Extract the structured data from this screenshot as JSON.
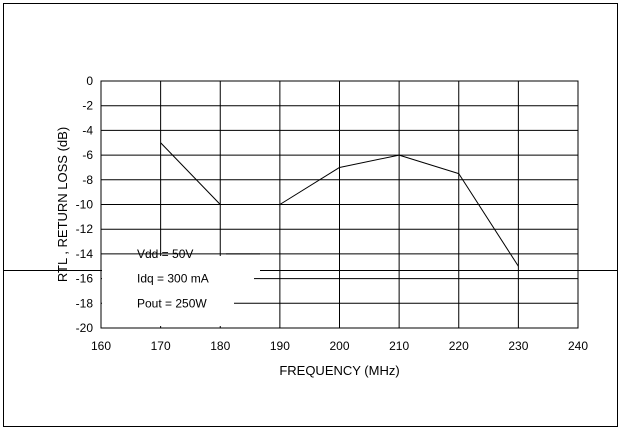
{
  "chart_data": {
    "type": "line",
    "title": "",
    "xlabel": "FREQUENCY (MHz)",
    "ylabel": "RTL , RETURN LOSS (dB)",
    "xlim": [
      160,
      240
    ],
    "ylim": [
      -20,
      0
    ],
    "xticks": [
      160,
      170,
      180,
      190,
      200,
      210,
      220,
      230,
      240
    ],
    "yticks": [
      0,
      -2,
      -4,
      -6,
      -8,
      -10,
      -12,
      -14,
      -16,
      -18,
      -20
    ],
    "grid": true,
    "series": [
      {
        "name": "",
        "x": [
          170,
          180,
          190,
          200,
          210,
          220,
          230
        ],
        "y": [
          -5,
          -10,
          -10,
          -7,
          -6,
          -7.5,
          -15
        ],
        "segments": [
          [
            0,
            1
          ],
          [
            2,
            3
          ],
          [
            3,
            4
          ],
          [
            4,
            5
          ],
          [
            5,
            6
          ]
        ]
      }
    ],
    "annotations": [
      "Vdd = 50V",
      "Idq = 300 mA",
      "Pout = 250W"
    ],
    "colors": {
      "line": "#000000",
      "grid": "#000000"
    }
  }
}
